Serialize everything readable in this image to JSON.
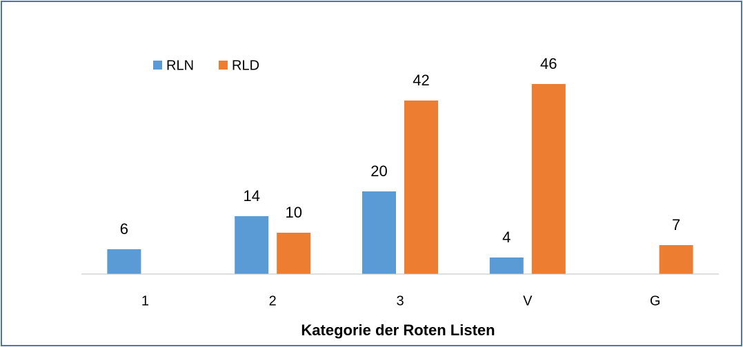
{
  "chart_data": {
    "type": "bar",
    "categories": [
      "1",
      "2",
      "3",
      "V",
      "G"
    ],
    "series": [
      {
        "name": "RLN",
        "color": "#5b9bd5",
        "values": [
          6,
          14,
          20,
          4,
          null
        ]
      },
      {
        "name": "RLD",
        "color": "#ed7d31",
        "values": [
          null,
          10,
          42,
          46,
          7
        ]
      }
    ],
    "xlabel": "Kategorie der Roten Listen",
    "legend": "top-left"
  }
}
